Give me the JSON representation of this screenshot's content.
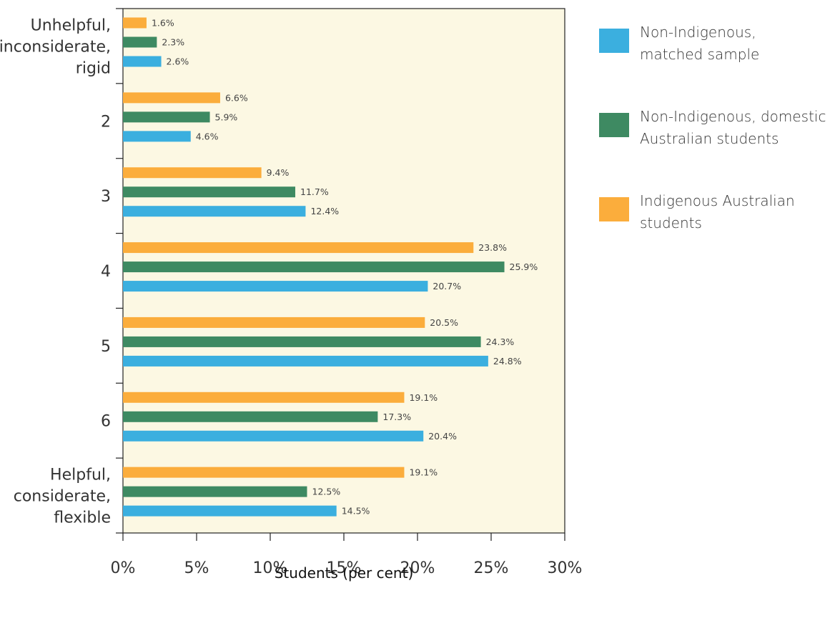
{
  "chart_data": {
    "type": "bar",
    "orientation": "horizontal",
    "categories": [
      [
        "Unhelpful,",
        "inconsiderate,",
        "rigid"
      ],
      [
        "2"
      ],
      [
        "3"
      ],
      [
        "4"
      ],
      [
        "5"
      ],
      [
        "6"
      ],
      [
        "Helpful,",
        "considerate,",
        "flexible"
      ]
    ],
    "series": [
      {
        "name": "Indigenous Australian students",
        "color": "#FBAD3C",
        "values": [
          1.6,
          6.6,
          9.4,
          23.8,
          20.5,
          19.1,
          19.1
        ],
        "labels": [
          "1.6%",
          "6.6%",
          "9.4%",
          "23.8%",
          "20.5%",
          "19.1%",
          "19.1%"
        ]
      },
      {
        "name": "Non-Indigenous, domestic Australian students",
        "color": "#3E8A62",
        "values": [
          2.3,
          5.9,
          11.7,
          25.9,
          24.3,
          17.3,
          12.5
        ],
        "labels": [
          "2.3%",
          "5.9%",
          "11.7%",
          "25.9%",
          "24.3%",
          "17.3%",
          "12.5%"
        ]
      },
      {
        "name": "Non-Indigenous, matched sample",
        "color": "#3BAFDF",
        "values": [
          2.6,
          4.6,
          12.4,
          20.7,
          24.8,
          20.4,
          14.5
        ],
        "labels": [
          "2.6%",
          "4.6%",
          "12.4%",
          "20.7%",
          "24.8%",
          "20.4%",
          "14.5%"
        ]
      }
    ],
    "xlim": [
      0,
      30
    ],
    "xticks": [
      0,
      5,
      10,
      15,
      20,
      25,
      30
    ],
    "xtick_labels": [
      "0%",
      "5%",
      "10%",
      "15%",
      "20%",
      "25%",
      "30%"
    ],
    "xlabel": "Students (per cent)",
    "ylabel": "",
    "title": "",
    "plot_background": "#FCF8E3",
    "grid": false,
    "legend_position": "right"
  },
  "legend": [
    {
      "lines": [
        "Non-Indigenous,",
        "matched sample"
      ],
      "color": "#3BAFDF"
    },
    {
      "lines": [
        "Non-Indigenous, domestic",
        "Australian students"
      ],
      "color": "#3E8A62"
    },
    {
      "lines": [
        "Indigenous Australian",
        "students"
      ],
      "color": "#FBAD3C"
    }
  ]
}
